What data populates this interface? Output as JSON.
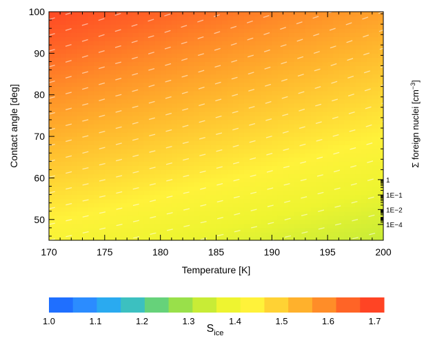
{
  "chart_data": {
    "type": "heatmap",
    "x": {
      "label": "Temperature [K]",
      "range": [
        170,
        200
      ],
      "ticks": [
        170,
        175,
        180,
        185,
        190,
        195,
        200
      ]
    },
    "y": {
      "label": "Contact angle [deg]",
      "range": [
        45,
        100
      ],
      "ticks": [
        50,
        60,
        70,
        80,
        90,
        100
      ]
    },
    "z": {
      "quantity": "S_ice",
      "range": [
        1.0,
        1.72
      ],
      "corner_values": {
        "T170_theta45": 1.42,
        "T170_theta100": 1.71,
        "T200_theta45": 1.33,
        "T200_theta100": 1.58
      },
      "contour_levels": [
        1.32,
        1.34,
        1.36,
        1.38,
        1.4,
        1.42,
        1.44,
        1.46,
        1.48,
        1.5,
        1.52,
        1.54,
        1.56,
        1.58,
        1.6,
        1.62,
        1.64,
        1.66,
        1.68,
        1.7
      ]
    },
    "colorbar": {
      "ticks": [
        "1.0",
        "1.1",
        "1.2",
        "1.3",
        "1.4",
        "1.5",
        "1.6",
        "1.7"
      ],
      "tick_values": [
        1.0,
        1.1,
        1.2,
        1.3,
        1.4,
        1.5,
        1.6,
        1.7
      ],
      "range": [
        1.0,
        1.72
      ],
      "title_main": "S",
      "title_sub": "ice",
      "colors": [
        "#1f6fff",
        "#2b8cff",
        "#2aaaf0",
        "#3cc0c0",
        "#66d27a",
        "#99e04a",
        "#c8ec36",
        "#eef430",
        "#fff23a",
        "#ffd234",
        "#ffb12c",
        "#ff8d28",
        "#ff6426",
        "#ff4424"
      ]
    },
    "right_axis": {
      "label_main": "Σ foreign nuclei [cm",
      "label_sup": "−3",
      "label_end": "]",
      "ticks": [
        {
          "label": "1",
          "at_theta": 59.6
        },
        {
          "label": "1E−1",
          "at_theta": 55.9
        },
        {
          "label": "1E−2",
          "at_theta": 52.4
        },
        {
          "label": "1E−4",
          "at_theta": 48.8
        }
      ]
    }
  }
}
